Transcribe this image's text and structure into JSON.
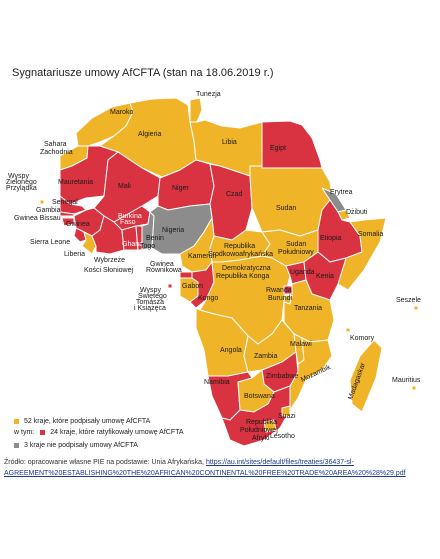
{
  "title": "Sygnatariusze umowy AfCFTA (stan na 18.06.2019 r.)",
  "colors": {
    "signed": "#f0b429",
    "ratified": "#d93240",
    "not_signed": "#8c8c8c",
    "border": "#ffffff"
  },
  "countries": {
    "tunezja": "Tunezja",
    "maroko": "Maroko",
    "algieria": "Algieria",
    "libia": "Libia",
    "egipt": "Egipt",
    "sahara": "Sahara Zachodnia",
    "mauretania": "Mauretania",
    "mali": "Mali",
    "niger": "Niger",
    "czad": "Czad",
    "sudan": "Sudan",
    "erytrea": "Erytrea",
    "dzibuti": "Dżibuti",
    "etiopia": "Etiopia",
    "somalia": "Somalia",
    "wyspy_zielonego": "Wyspy Zielonego Przylądka",
    "senegal": "Senegal",
    "gambia": "Gambia",
    "gwinea_bissau": "Gwinea Bissau",
    "gwinea": "Gwinea",
    "sierra_leone": "Sierra Leone",
    "liberia": "Liberia",
    "wybrzeze": "Wybrzeże Kości Słoniowej",
    "burkina": "Burkina Faso",
    "ghana": "Ghana",
    "togo": "Togo",
    "benin": "Benin",
    "nigeria": "Nigeria",
    "kamerun": "Kamerun",
    "rsa_srodek": "Republika Środkowoafrykańska",
    "sudan_pld": "Sudan Południowy",
    "uganda": "Uganda",
    "kenia": "Kenia",
    "gwinea_rown": "Gwinea Równikowa",
    "wyspy_st": "Wyspy Świętego Tomasza i Książęca",
    "gabon": "Gabon",
    "kongo": "Kongo",
    "drk": "Demokratyczna Republika Konga",
    "rwanda": "Rwanda",
    "burundi": "Burundi",
    "tanzania": "Tanzania",
    "seszele": "Seszele",
    "komory": "Komory",
    "angola": "Angola",
    "zambia": "Zambia",
    "malawi": "Malawi",
    "mozambik": "Mozambik",
    "madagaskar": "Madagaskar",
    "mauritius": "Mauritius",
    "namibia": "Namibia",
    "zimbabwe": "Zimbabwe",
    "botswana": "Botswana",
    "suazi": "Suazi",
    "lesotho": "Lesotho",
    "rpa": "Republika Południowej Afryki"
  },
  "legend": {
    "signed": "52 kraje, które podpisały umowę AfCFTA",
    "in_that_prefix": "w tym:",
    "ratified": "24 kraje, które ratyfikowały umowę AfCFTA",
    "not_signed": "3 kraje nie podpisały umowy AfCFTA"
  },
  "source": {
    "prefix": "Źródło: opracowanie własne PIE na podstawie: Unia Afrykańska, ",
    "url": "https://au.int/sites/default/files/treaties/36437-sl-AGREEMENT%20ESTABLISHING%20THE%20AFRICAN%20CONTINENTAL%20FREE%20TRADE%20AREA%20%28%29.pdf"
  }
}
